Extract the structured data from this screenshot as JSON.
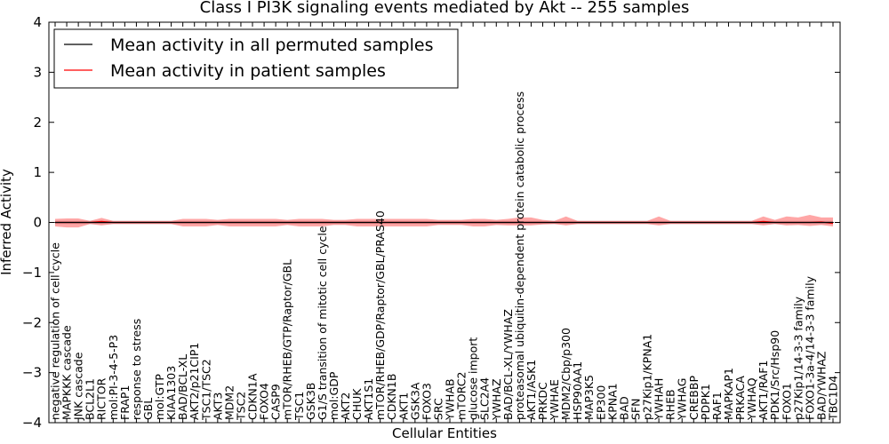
{
  "chart_data": {
    "type": "line",
    "title": "Class I PI3K signaling events mediated by Akt -- 255 samples",
    "xlabel": "Cellular Entities",
    "ylabel": "Inferred Activity",
    "ylim": [
      -4,
      4
    ],
    "yticks": [
      "4",
      "3",
      "2",
      "1",
      "0",
      "−1",
      "−2",
      "−3",
      "−4"
    ],
    "grid": false,
    "legend_position": "top-left",
    "colors": {
      "permuted": "#000000",
      "patient": "#ff0000",
      "patient_band": "#f4a6a6",
      "permuted_band": "#c9c9d0"
    },
    "categories": [
      "negative regulation of cell cycle",
      "MAPKKK cascade",
      "JNK cascade",
      "BCL2L1",
      "RICTOR",
      "mol:PI-3-4-5-P3",
      "FRAP1",
      "response to stress",
      "GBL",
      "mol:GTP",
      "KIAA1303",
      "BAD/BCL-XL",
      "AKT2/p21CIP1",
      "TSC1/TSC2",
      "AKT3",
      "MDM2",
      "TSC2",
      "CDKN1A",
      "FOXO4",
      "CASP9",
      "mTOR/RHEB/GTP/Raptor/GBL",
      "TSC1",
      "GSK3B",
      "G1/S transition of mitotic cell cycle",
      "mol:GDP",
      "AKT2",
      "CHUK",
      "AKT1S1",
      "mTOR/RHEB/GDP/Raptor/GBL/PRAS40",
      "CDKN1B",
      "AKT1",
      "GSK3A",
      "FOXO3",
      "SRC",
      "YWHAB",
      "mTORC2",
      "glucose import",
      "SLC2A4",
      "YWHAZ",
      "BAD/BCL-XL/YWHAZ",
      "proteasomal ubiquitin-dependent protein catabolic process",
      "AKT1/ASK1",
      "PRKDC",
      "YWHAE",
      "MDM2/Cbp/p300",
      "HSP90AA1",
      "MAP3K5",
      "EP300",
      "KPNA1",
      "BAD",
      "SFN",
      "p27Kip1/KPNA1",
      "YWHAH",
      "RHEB",
      "YWHAG",
      "CREBBP",
      "PDPK1",
      "RAF1",
      "MAPKAP1",
      "PRKACA",
      "YWHAQ",
      "AKT1/RAF1",
      "PDK1/Src/Hsp90",
      "FOXO1",
      "p27Kip1/14-3-3 family",
      "FOXO1-3a-4/14-3-3 family",
      "BAD/YWHAZ",
      "TBC1D4"
    ],
    "series": [
      {
        "name": "Mean activity in all permuted samples",
        "color": "#000000",
        "values": [
          0,
          0,
          0,
          0,
          0,
          0,
          0,
          0,
          0,
          0,
          0,
          0,
          0,
          0,
          0,
          0,
          0,
          0,
          0,
          0,
          0,
          0,
          0,
          0,
          0,
          0,
          0,
          0,
          0,
          0,
          0,
          0,
          0,
          0,
          0,
          0,
          0,
          0,
          0,
          0,
          0,
          0,
          0,
          0,
          0,
          0,
          0,
          0,
          0,
          0,
          0,
          0,
          0,
          0,
          0,
          0,
          0,
          0,
          0,
          0,
          0,
          0,
          0,
          0,
          0,
          0,
          0,
          0
        ],
        "band": 0.03
      },
      {
        "name": "Mean activity in patient samples",
        "color": "#ff0000",
        "values": [
          0,
          0,
          0,
          0,
          0.02,
          0,
          0,
          0,
          0,
          0,
          0,
          0,
          0,
          0,
          0,
          0,
          0,
          0,
          0,
          0,
          0,
          0,
          0,
          0,
          0,
          0,
          0,
          0,
          0,
          0,
          0,
          0,
          0,
          0,
          0,
          0,
          0,
          0,
          0,
          0,
          0,
          0,
          0,
          0,
          0,
          0,
          0,
          0,
          0,
          0,
          0,
          0,
          0,
          0,
          0,
          0,
          0,
          0,
          0,
          0,
          0,
          0.02,
          0,
          0,
          0,
          0,
          0.01,
          -0.02
        ],
        "band_upper": [
          0.07,
          0.08,
          0.08,
          0.03,
          0.09,
          0.03,
          0.03,
          0.03,
          0.03,
          0.03,
          0.03,
          0.07,
          0.07,
          0.07,
          0.05,
          0.07,
          0.07,
          0.07,
          0.07,
          0.07,
          0.05,
          0.07,
          0.07,
          0.07,
          0.05,
          0.05,
          0.07,
          0.07,
          0.07,
          0.07,
          0.07,
          0.07,
          0.07,
          0.05,
          0.05,
          0.05,
          0.07,
          0.07,
          0.05,
          0.07,
          0.1,
          0.1,
          0.05,
          0.03,
          0.12,
          0.03,
          0.03,
          0.03,
          0.03,
          0.03,
          0.03,
          0.03,
          0.12,
          0.03,
          0.03,
          0.03,
          0.03,
          0.03,
          0.03,
          0.03,
          0.03,
          0.12,
          0.05,
          0.12,
          0.1,
          0.15,
          0.1,
          0.1
        ],
        "band_lower": [
          -0.08,
          -0.1,
          -0.1,
          -0.03,
          -0.06,
          -0.03,
          -0.03,
          -0.03,
          -0.03,
          -0.03,
          -0.03,
          -0.08,
          -0.08,
          -0.08,
          -0.05,
          -0.08,
          -0.08,
          -0.08,
          -0.08,
          -0.08,
          -0.05,
          -0.08,
          -0.08,
          -0.08,
          -0.05,
          -0.05,
          -0.08,
          -0.08,
          -0.08,
          -0.08,
          -0.08,
          -0.08,
          -0.08,
          -0.05,
          -0.05,
          -0.05,
          -0.08,
          -0.08,
          -0.05,
          -0.06,
          -0.06,
          -0.06,
          -0.04,
          -0.03,
          -0.06,
          -0.03,
          -0.03,
          -0.03,
          -0.03,
          -0.03,
          -0.03,
          -0.03,
          -0.06,
          -0.03,
          -0.03,
          -0.03,
          -0.03,
          -0.03,
          -0.03,
          -0.03,
          -0.03,
          -0.06,
          -0.03,
          -0.06,
          -0.05,
          -0.07,
          -0.05,
          -0.08
        ]
      }
    ]
  }
}
